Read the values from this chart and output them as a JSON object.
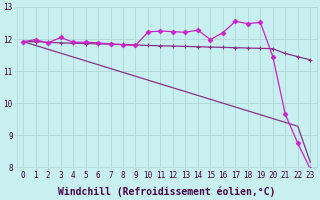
{
  "xlabel": "Windchill (Refroidissement éolien,°C)",
  "background_color": "#c8f0f0",
  "grid_color": "#b0d8d8",
  "line_color_dark": "#883388",
  "line_color_bright": "#cc22cc",
  "x": [
    0,
    1,
    2,
    3,
    4,
    5,
    6,
    7,
    8,
    9,
    10,
    11,
    12,
    13,
    14,
    15,
    16,
    17,
    18,
    19,
    20,
    21,
    22,
    23
  ],
  "y_diagonal": [
    11.92,
    11.8,
    11.68,
    11.56,
    11.44,
    11.32,
    11.2,
    11.08,
    10.96,
    10.84,
    10.72,
    10.6,
    10.48,
    10.36,
    10.24,
    10.12,
    10.0,
    9.88,
    9.76,
    9.64,
    9.52,
    9.4,
    9.28,
    8.16
  ],
  "y_flat": [
    11.92,
    11.92,
    11.9,
    11.88,
    11.87,
    11.86,
    11.85,
    11.84,
    11.83,
    11.82,
    11.8,
    11.79,
    11.78,
    11.77,
    11.76,
    11.75,
    11.74,
    11.73,
    11.72,
    11.71,
    11.7,
    11.55,
    11.45,
    11.35
  ],
  "y_wiggly": [
    11.92,
    11.98,
    11.88,
    12.05,
    11.9,
    11.9,
    11.88,
    11.85,
    11.82,
    11.8,
    12.22,
    12.25,
    12.23,
    12.21,
    12.28,
    11.98,
    12.2,
    12.55,
    12.48,
    12.52,
    11.45,
    9.65,
    8.75,
    7.95
  ],
  "ylim": [
    8,
    13
  ],
  "xlim": [
    -0.5,
    23.5
  ],
  "yticks": [
    8,
    9,
    10,
    11,
    12,
    13
  ],
  "xticks": [
    0,
    1,
    2,
    3,
    4,
    5,
    6,
    7,
    8,
    9,
    10,
    11,
    12,
    13,
    14,
    15,
    16,
    17,
    18,
    19,
    20,
    21,
    22,
    23
  ],
  "tick_fontsize": 5.5,
  "xlabel_fontsize": 7.0
}
